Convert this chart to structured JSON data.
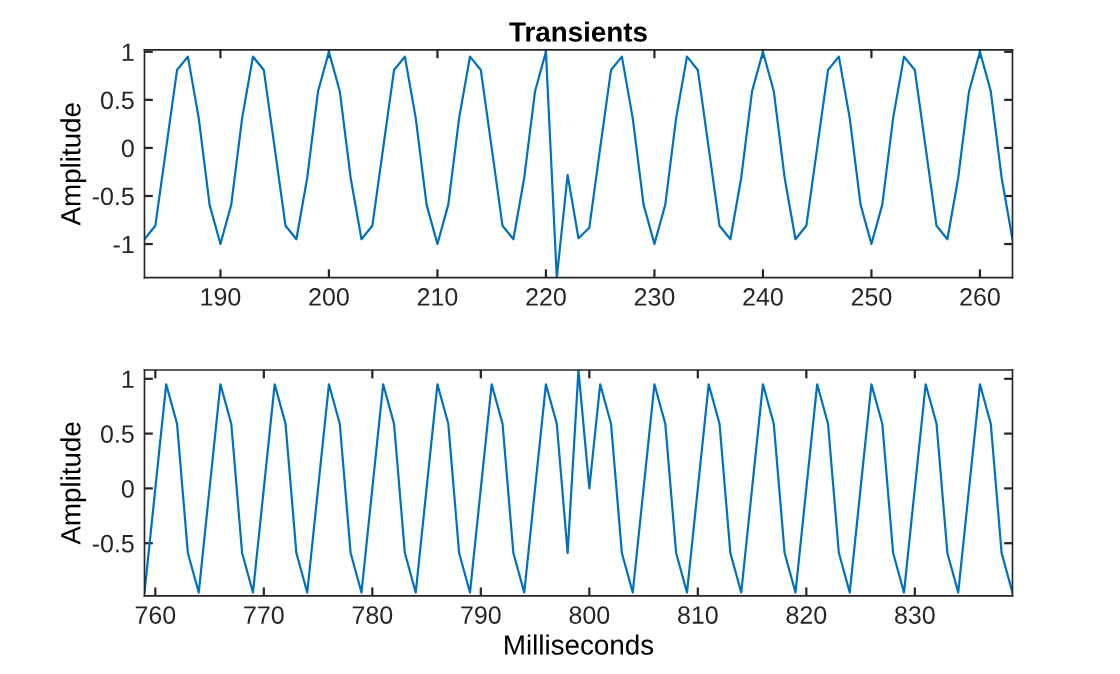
{
  "chart_data": [
    {
      "type": "line",
      "title": "Transients",
      "ylabel": "Amplitude",
      "x": [
        183,
        184,
        185,
        186,
        187,
        188,
        189,
        190,
        191,
        192,
        193,
        194,
        195,
        196,
        197,
        198,
        199,
        200,
        201,
        202,
        203,
        204,
        205,
        206,
        207,
        208,
        209,
        210,
        211,
        212,
        213,
        214,
        215,
        216,
        217,
        218,
        219,
        220,
        221,
        222,
        223,
        224,
        225,
        226,
        227,
        228,
        229,
        230,
        231,
        232,
        233,
        234,
        235,
        236,
        237,
        238,
        239,
        240,
        241,
        242,
        243,
        244,
        245,
        246,
        247,
        248,
        249,
        250,
        251,
        252,
        253,
        254,
        255,
        256,
        257,
        258,
        259,
        260,
        261,
        262,
        263
      ],
      "series": [
        {
          "color": "#0072bd",
          "values": [
            -0.95,
            -0.81,
            0,
            0.81,
            0.95,
            0.31,
            -0.59,
            -1,
            -0.59,
            0.31,
            0.95,
            0.81,
            0,
            -0.81,
            -0.95,
            -0.31,
            0.59,
            1,
            0.59,
            -0.31,
            -0.95,
            -0.81,
            0,
            0.81,
            0.95,
            0.31,
            -0.59,
            -1,
            -0.59,
            0.31,
            0.95,
            0.81,
            0,
            -0.81,
            -0.95,
            -0.31,
            0.59,
            1,
            -1.35,
            -0.28,
            -0.94,
            -0.83,
            0,
            0.81,
            0.95,
            0.31,
            -0.59,
            -1,
            -0.59,
            0.31,
            0.95,
            0.81,
            0,
            -0.81,
            -0.95,
            -0.31,
            0.59,
            1,
            0.59,
            -0.31,
            -0.95,
            -0.81,
            0,
            0.81,
            0.95,
            0.31,
            -0.59,
            -1,
            -0.59,
            0.31,
            0.95,
            0.81,
            0,
            -0.81,
            -0.95,
            -0.31,
            0.59,
            1,
            0.59,
            -0.31,
            -0.95
          ]
        }
      ],
      "xlim": [
        183,
        263
      ],
      "xticks": [
        190,
        200,
        210,
        220,
        230,
        240,
        250,
        260
      ],
      "ylim": [
        -1.35,
        1.02
      ],
      "yticks": [
        -1,
        -0.5,
        0,
        0.5,
        1
      ],
      "grid": false,
      "legend": false,
      "line_style": "solid",
      "marker": "none"
    },
    {
      "type": "line",
      "xlabel": "Milliseconds",
      "ylabel": "Amplitude",
      "x": [
        759,
        760,
        761,
        762,
        763,
        764,
        765,
        766,
        767,
        768,
        769,
        770,
        771,
        772,
        773,
        774,
        775,
        776,
        777,
        778,
        779,
        780,
        781,
        782,
        783,
        784,
        785,
        786,
        787,
        788,
        789,
        790,
        791,
        792,
        793,
        794,
        795,
        796,
        797,
        798,
        799,
        800,
        801,
        802,
        803,
        804,
        805,
        806,
        807,
        808,
        809,
        810,
        811,
        812,
        813,
        814,
        815,
        816,
        817,
        818,
        819,
        820,
        821,
        822,
        823,
        824,
        825,
        826,
        827,
        828,
        829,
        830,
        831,
        832,
        833,
        834,
        835,
        836,
        837,
        838,
        839
      ],
      "series": [
        {
          "color": "#0072bd",
          "values": [
            -0.95,
            0,
            0.95,
            0.59,
            -0.59,
            -0.95,
            0,
            0.95,
            0.59,
            -0.59,
            -0.95,
            0,
            0.95,
            0.59,
            -0.59,
            -0.95,
            0,
            0.95,
            0.59,
            -0.59,
            -0.95,
            0,
            0.95,
            0.59,
            -0.59,
            -0.95,
            0,
            0.95,
            0.59,
            -0.59,
            -0.95,
            0,
            0.95,
            0.59,
            -0.59,
            -0.95,
            0,
            0.95,
            0.59,
            -0.59,
            1.08,
            0,
            0.95,
            0.59,
            -0.59,
            -0.95,
            0,
            0.95,
            0.59,
            -0.59,
            -0.95,
            0,
            0.95,
            0.59,
            -0.59,
            -0.95,
            0,
            0.95,
            0.59,
            -0.59,
            -0.95,
            0,
            0.95,
            0.59,
            -0.59,
            -0.95,
            0,
            0.95,
            0.59,
            -0.59,
            -0.95,
            0,
            0.95,
            0.59,
            -0.59,
            -0.95,
            0,
            0.95,
            0.59,
            -0.59,
            -0.95
          ]
        }
      ],
      "xlim": [
        759,
        839
      ],
      "xticks": [
        760,
        770,
        780,
        790,
        800,
        810,
        820,
        830
      ],
      "ylim": [
        -0.98,
        1.08
      ],
      "yticks": [
        -0.5,
        0,
        0.5,
        1
      ],
      "grid": false,
      "legend": false,
      "line_style": "solid",
      "marker": "none"
    }
  ]
}
